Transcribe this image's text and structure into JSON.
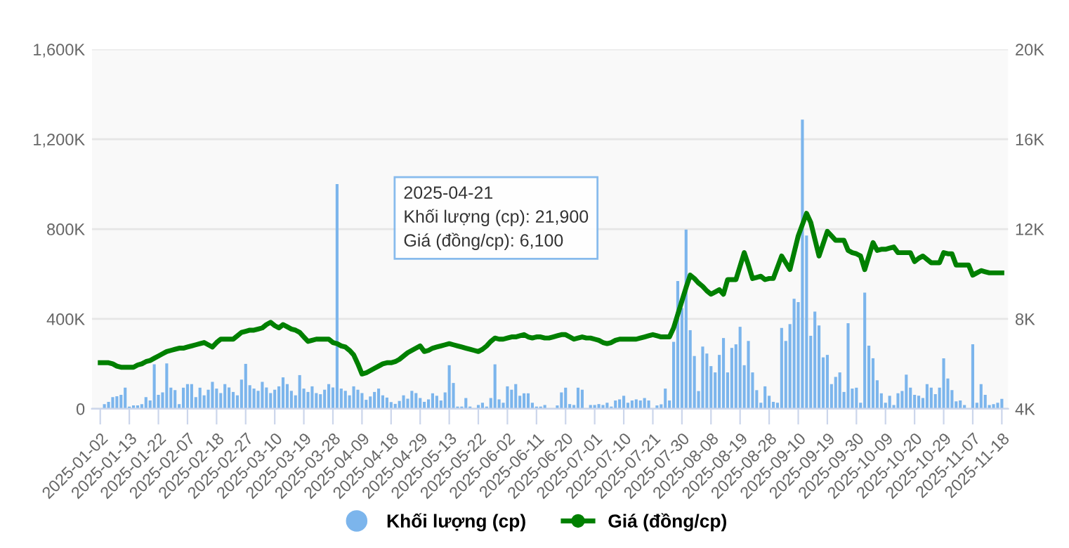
{
  "chart_data": {
    "type": "bar",
    "categories": [
      "2025-01-02",
      null,
      null,
      null,
      null,
      null,
      null,
      "2025-01-13",
      null,
      null,
      null,
      null,
      null,
      null,
      "2025-01-22",
      null,
      null,
      null,
      null,
      null,
      null,
      "2025-02-07",
      null,
      null,
      null,
      null,
      null,
      null,
      "2025-02-18",
      null,
      null,
      null,
      null,
      null,
      null,
      "2025-02-27",
      null,
      null,
      null,
      null,
      null,
      null,
      "2025-03-10",
      null,
      null,
      null,
      null,
      null,
      null,
      "2025-03-19",
      null,
      null,
      null,
      null,
      null,
      null,
      "2025-03-28",
      null,
      null,
      null,
      null,
      null,
      null,
      "2025-04-09",
      null,
      null,
      null,
      null,
      null,
      null,
      "2025-04-18",
      null,
      null,
      null,
      null,
      null,
      null,
      "2025-04-29",
      null,
      null,
      null,
      null,
      null,
      null,
      "2025-05-13",
      null,
      null,
      null,
      null,
      null,
      null,
      "2025-05-22",
      null,
      null,
      null,
      null,
      null,
      null,
      "2025-06-02",
      null,
      null,
      null,
      null,
      null,
      null,
      "2025-06-11",
      null,
      null,
      null,
      null,
      null,
      null,
      "2025-06-20",
      null,
      null,
      null,
      null,
      null,
      null,
      "2025-07-01",
      null,
      null,
      null,
      null,
      null,
      null,
      "2025-07-10",
      null,
      null,
      null,
      null,
      null,
      null,
      "2025-07-21",
      null,
      null,
      null,
      null,
      null,
      null,
      "2025-07-30",
      null,
      null,
      null,
      null,
      null,
      null,
      "2025-08-08",
      null,
      null,
      null,
      null,
      null,
      null,
      "2025-08-19",
      null,
      null,
      null,
      null,
      null,
      null,
      "2025-08-28",
      null,
      null,
      null,
      null,
      null,
      null,
      "2025-09-10",
      null,
      null,
      null,
      null,
      null,
      null,
      "2025-09-19",
      null,
      null,
      null,
      null,
      null,
      null,
      "2025-09-30",
      null,
      null,
      null,
      null,
      null,
      null,
      "2025-10-09",
      null,
      null,
      null,
      null,
      null,
      null,
      "2025-10-20",
      null,
      null,
      null,
      null,
      null,
      null,
      "2025-10-29",
      null,
      null,
      null,
      null,
      null,
      null,
      "2025-11-07",
      null,
      null,
      null,
      null,
      null,
      null,
      "2025-11-18"
    ],
    "series": [
      {
        "name": "Khối lượng (cp)",
        "color": "#7cb5ec",
        "values": [
          null,
          21000,
          31000,
          52000,
          56000,
          62000,
          94000,
          10000,
          15000,
          15000,
          21000,
          52000,
          37000,
          198000,
          62000,
          73000,
          202000,
          94000,
          83000,
          21000,
          94000,
          110000,
          110000,
          52000,
          94000,
          60000,
          85000,
          120000,
          90000,
          70000,
          110000,
          95000,
          75000,
          60000,
          130000,
          200000,
          105000,
          90000,
          80000,
          120000,
          95000,
          70000,
          85000,
          100000,
          140000,
          110000,
          80000,
          60000,
          150000,
          90000,
          75000,
          100000,
          70000,
          65000,
          85000,
          110000,
          95000,
          1000000,
          90000,
          80000,
          60000,
          100000,
          85000,
          70000,
          40000,
          55000,
          75000,
          90000,
          60000,
          50000,
          30000,
          21900,
          35000,
          60000,
          45000,
          80000,
          70000,
          48000,
          31000,
          42000,
          69000,
          58000,
          37000,
          73000,
          194000,
          115000,
          10000,
          10000,
          48000,
          10000,
          2000,
          17000,
          27000,
          10000,
          48000,
          198000,
          42000,
          27000,
          100000,
          85000,
          110000,
          58000,
          69000,
          69000,
          27000,
          10000,
          10000,
          17000,
          2000,
          2000,
          15000,
          73000,
          94000,
          21000,
          17000,
          94000,
          85000,
          2000,
          17000,
          17000,
          21000,
          17000,
          27000,
          10000,
          37000,
          42000,
          58000,
          27000,
          37000,
          42000,
          37000,
          48000,
          37000,
          2000,
          15000,
          20000,
          90000,
          37000,
          298000,
          569000,
          448000,
          798000,
          350000,
          235000,
          79000,
          277000,
          246000,
          190000,
          162000,
          240000,
          315000,
          162000,
          271000,
          287000,
          365000,
          194000,
          302000,
          162000,
          83000,
          27000,
          100000,
          58000,
          31000,
          27000,
          360000,
          302000,
          377000,
          490000,
          475000,
          1287000,
          771000,
          325000,
          433000,
          371000,
          229000,
          240000,
          110000,
          142000,
          162000,
          75000,
          381000,
          90000,
          94000,
          27000,
          517000,
          281000,
          225000,
          127000,
          69000,
          27000,
          58000,
          17000,
          69000,
          79000,
          152000,
          94000,
          62000,
          58000,
          48000,
          110000,
          94000,
          65000,
          94000,
          225000,
          135000,
          83000,
          33000,
          37000,
          17000,
          2000,
          287000,
          27000,
          110000,
          62000,
          17000,
          21000,
          27000,
          44000
        ]
      },
      {
        "name": "Giá (đồng/cp)",
        "type": "line",
        "axis": "y2",
        "color": "#008000",
        "values": [
          6050,
          6050,
          6050,
          6000,
          5900,
          5850,
          5850,
          5850,
          5850,
          5950,
          6000,
          6100,
          6150,
          6250,
          6350,
          6450,
          6550,
          6600,
          6650,
          6700,
          6700,
          6750,
          6800,
          6850,
          6900,
          6950,
          6850,
          6750,
          6950,
          7100,
          7100,
          7100,
          7100,
          7250,
          7400,
          7450,
          7500,
          7500,
          7550,
          7600,
          7750,
          7850,
          7700,
          7600,
          7750,
          7650,
          7550,
          7500,
          7400,
          7200,
          7000,
          7050,
          7100,
          7100,
          7100,
          7100,
          6950,
          6900,
          6800,
          6750,
          6600,
          6400,
          6000,
          5550,
          5600,
          5700,
          5800,
          5900,
          6000,
          6050,
          6050,
          6100,
          6200,
          6350,
          6500,
          6600,
          6700,
          6800,
          6550,
          6600,
          6700,
          6750,
          6800,
          6850,
          6900,
          6850,
          6800,
          6750,
          6700,
          6650,
          6600,
          6550,
          6650,
          6800,
          7000,
          7150,
          7100,
          7100,
          7150,
          7200,
          7200,
          7250,
          7300,
          7200,
          7150,
          7200,
          7200,
          7150,
          7150,
          7200,
          7250,
          7300,
          7300,
          7200,
          7100,
          7150,
          7200,
          7150,
          7150,
          7100,
          7050,
          6950,
          6900,
          6950,
          7050,
          7100,
          7100,
          7100,
          7100,
          7100,
          7150,
          7200,
          7250,
          7300,
          7250,
          7200,
          7200,
          7200,
          7600,
          8200,
          8800,
          9400,
          9950,
          9800,
          9600,
          9450,
          9250,
          9100,
          9200,
          9300,
          9100,
          9750,
          9750,
          9750,
          10350,
          10950,
          10400,
          9800,
          9850,
          9900,
          9750,
          9800,
          9800,
          10300,
          10800,
          10500,
          10200,
          10950,
          11700,
          12200,
          12700,
          12300,
          11550,
          10800,
          11350,
          11900,
          11700,
          11500,
          11500,
          11500,
          11050,
          10950,
          10900,
          10800,
          10200,
          10800,
          11400,
          11050,
          11100,
          11100,
          11150,
          11200,
          10950,
          10950,
          10950,
          10950,
          10550,
          10700,
          10800,
          10650,
          10500,
          10500,
          10500,
          10950,
          10900,
          10900,
          10400,
          10400,
          10400,
          10400,
          9950,
          10050,
          10150,
          10100,
          10050,
          10050,
          10050,
          10050
        ]
      }
    ],
    "ylim": [
      0,
      1600000
    ],
    "yticks": [
      {
        "value": 0,
        "label": "0"
      },
      {
        "value": 400000,
        "label": "400K"
      },
      {
        "value": 800000,
        "label": "800K"
      },
      {
        "value": 1200000,
        "label": "1,200K"
      },
      {
        "value": 1600000,
        "label": "1,600K"
      }
    ],
    "y2lim": [
      4000,
      20000
    ],
    "y2ticks": [
      {
        "value": 4000,
        "label": "4K"
      },
      {
        "value": 8000,
        "label": "8K"
      },
      {
        "value": 12000,
        "label": "12K"
      },
      {
        "value": 16000,
        "label": "16K"
      },
      {
        "value": 20000,
        "label": "20K"
      }
    ],
    "grid": "y",
    "legend": "bottom",
    "marker": "none",
    "line_style": "solid",
    "annotations": [
      "2025-04-21",
      "Khối lượng (cp): 21,900",
      "Giá (đồng/cp): 6,100"
    ]
  }
}
